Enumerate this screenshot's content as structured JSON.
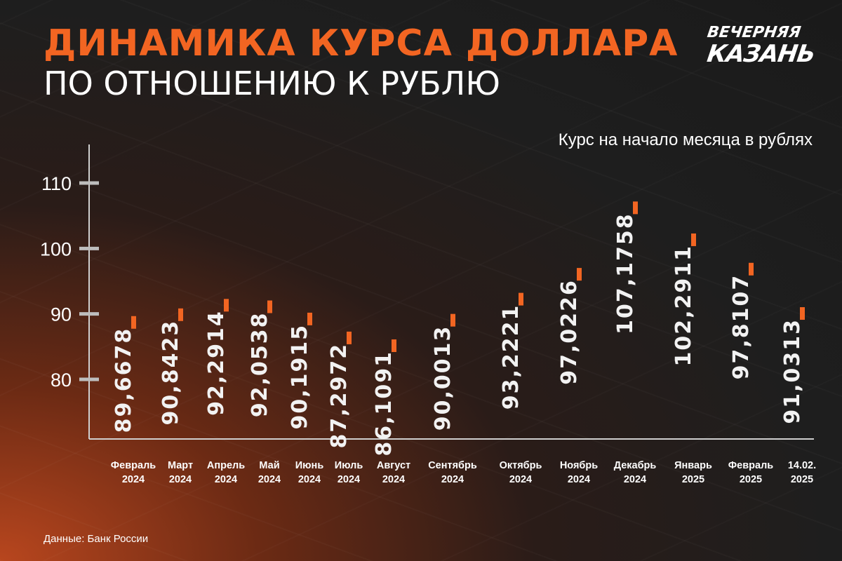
{
  "title_line1": "ДИНАМИКА КУРСА ДОЛЛАРА",
  "title_line2": "ПО ОТНОШЕНИЮ К РУБЛЮ",
  "logo": {
    "line1": "ВЕЧЕРНЯЯ",
    "line2": "КАЗАНЬ"
  },
  "source": "Данные: Банк России",
  "colors": {
    "accent": "#f26522",
    "axis": "#bdbdbd",
    "text": "#ffffff"
  },
  "chart_data": {
    "type": "bar",
    "subtitle": "Курс на начало месяца в рублях",
    "ylim": [
      70,
      115
    ],
    "yticks": [
      80,
      90,
      100,
      110
    ],
    "categories": [
      [
        "Февраль",
        "2024"
      ],
      [
        "Март",
        "2024"
      ],
      [
        "Апрель",
        "2024"
      ],
      [
        "Май",
        "2024"
      ],
      [
        "Июнь",
        "2024"
      ],
      [
        "Июль",
        "2024"
      ],
      [
        "Август",
        "2024"
      ],
      [
        "Сентябрь",
        "2024"
      ],
      [
        "Октябрь",
        "2024"
      ],
      [
        "Ноябрь",
        "2024"
      ],
      [
        "Декабрь",
        "2024"
      ],
      [
        "Январь",
        "2025"
      ],
      [
        "Февраль",
        "2025"
      ],
      [
        "14.02.",
        "2025"
      ]
    ],
    "values": [
      89.6678,
      90.8423,
      92.2914,
      92.0538,
      90.1915,
      87.2972,
      86.1091,
      90.0013,
      93.2221,
      97.0226,
      107.1758,
      102.2911,
      97.8107,
      91.0313
    ],
    "value_labels": [
      "89,6678",
      "90,8423",
      "92,2914",
      "92,0538",
      "90,1915",
      "87,2972",
      "86,1091",
      "90,0013",
      "93,2221",
      "97,0226",
      "107,1758",
      "102,2911",
      "97,8107",
      "91,0313"
    ],
    "grid": false,
    "legend": "none"
  }
}
